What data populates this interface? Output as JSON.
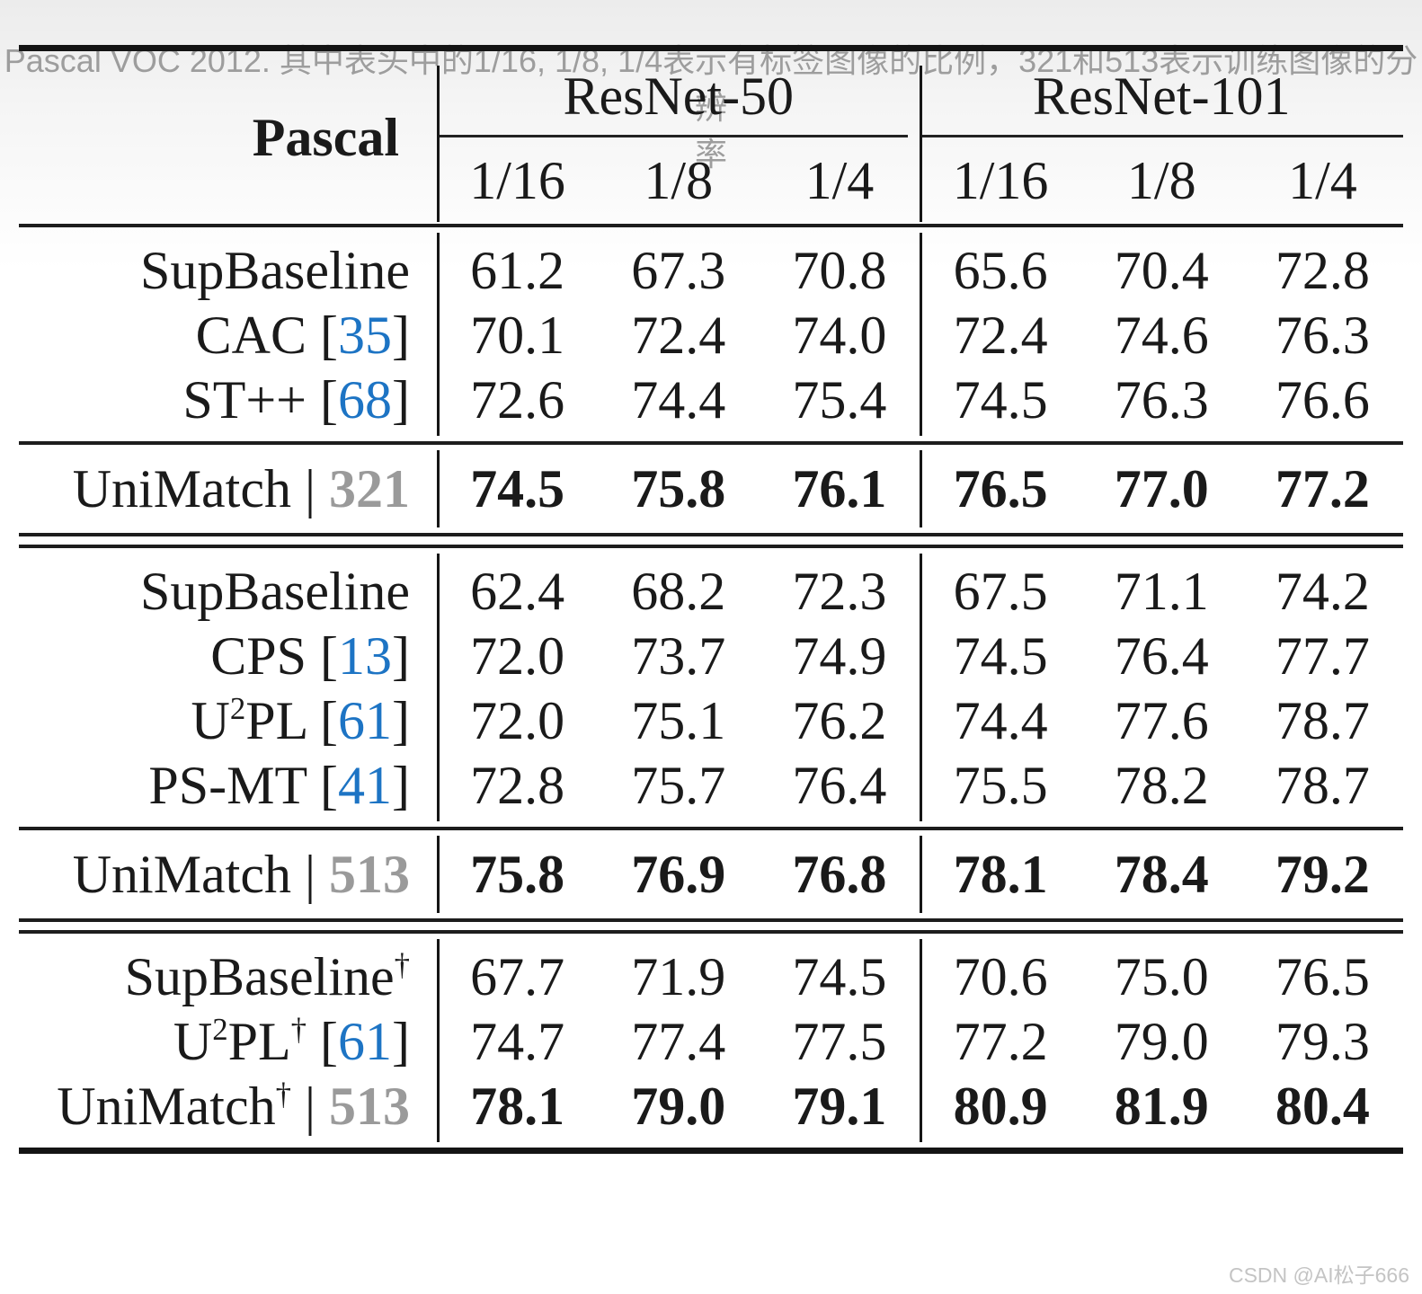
{
  "colors": {
    "accent_blue": "#1d74c4",
    "muted_gray": "#9a9a9a",
    "rule": "#1a1a1a"
  },
  "header": {
    "stub": "Pascal",
    "groups": [
      {
        "label": "ResNet-50"
      },
      {
        "label": "ResNet-101"
      }
    ],
    "subcols": [
      "1/16",
      "1/8",
      "1/4",
      "1/16",
      "1/8",
      "1/4"
    ]
  },
  "sections": [
    {
      "name": "comparisons-321",
      "rule_after": "single",
      "rows": [
        {
          "parts": [
            {
              "text": "SupBaseline"
            }
          ],
          "values": [
            "61.2",
            "67.3",
            "70.8",
            "65.6",
            "70.4",
            "72.8"
          ],
          "bold": false
        },
        {
          "parts": [
            {
              "text": "CAC"
            },
            {
              "text": " ["
            },
            {
              "text": "35",
              "blue": true
            },
            {
              "text": "]"
            }
          ],
          "values": [
            "70.1",
            "72.4",
            "74.0",
            "72.4",
            "74.6",
            "76.3"
          ],
          "bold": false
        },
        {
          "parts": [
            {
              "text": "ST++"
            },
            {
              "text": " ["
            },
            {
              "text": "68",
              "blue": true
            },
            {
              "text": "]"
            }
          ],
          "values": [
            "72.6",
            "74.4",
            "75.4",
            "74.5",
            "76.3",
            "76.6"
          ],
          "bold": false
        }
      ]
    },
    {
      "name": "unimatch-321",
      "rule_after": "double",
      "rows": [
        {
          "parts": [
            {
              "text": "UniMatch"
            },
            {
              "text": " | "
            },
            {
              "text": "321",
              "gray": true
            }
          ],
          "values": [
            "74.5",
            "75.8",
            "76.1",
            "76.5",
            "77.0",
            "77.2"
          ],
          "bold": true
        }
      ]
    },
    {
      "name": "comparisons-513",
      "rule_after": "single",
      "rows": [
        {
          "parts": [
            {
              "text": "SupBaseline"
            }
          ],
          "values": [
            "62.4",
            "68.2",
            "72.3",
            "67.5",
            "71.1",
            "74.2"
          ],
          "bold": false
        },
        {
          "parts": [
            {
              "text": "CPS"
            },
            {
              "text": " ["
            },
            {
              "text": "13",
              "blue": true
            },
            {
              "text": "]"
            }
          ],
          "values": [
            "72.0",
            "73.7",
            "74.9",
            "74.5",
            "76.4",
            "77.7"
          ],
          "bold": false
        },
        {
          "parts": [
            {
              "text": "U"
            },
            {
              "text": "2",
              "sup": true
            },
            {
              "text": "PL"
            },
            {
              "text": " ["
            },
            {
              "text": "61",
              "blue": true
            },
            {
              "text": "]"
            }
          ],
          "values": [
            "72.0",
            "75.1",
            "76.2",
            "74.4",
            "77.6",
            "78.7"
          ],
          "bold": false
        },
        {
          "parts": [
            {
              "text": "PS-MT"
            },
            {
              "text": " ["
            },
            {
              "text": "41",
              "blue": true
            },
            {
              "text": "]"
            }
          ],
          "values": [
            "72.8",
            "75.7",
            "76.4",
            "75.5",
            "78.2",
            "78.7"
          ],
          "bold": false
        }
      ]
    },
    {
      "name": "unimatch-513",
      "rule_after": "double",
      "rows": [
        {
          "parts": [
            {
              "text": "UniMatch"
            },
            {
              "text": " | "
            },
            {
              "text": "513",
              "gray": true
            }
          ],
          "values": [
            "75.8",
            "76.9",
            "76.8",
            "78.1",
            "78.4",
            "79.2"
          ],
          "bold": true
        }
      ]
    },
    {
      "name": "dagger-block",
      "rule_after": "none",
      "rows": [
        {
          "parts": [
            {
              "text": "SupBaseline"
            },
            {
              "text": "†",
              "sup": true
            }
          ],
          "values": [
            "67.7",
            "71.9",
            "74.5",
            "70.6",
            "75.0",
            "76.5"
          ],
          "bold": false
        },
        {
          "parts": [
            {
              "text": "U"
            },
            {
              "text": "2",
              "sup": true
            },
            {
              "text": "PL"
            },
            {
              "text": "†",
              "sup": true
            },
            {
              "text": " ["
            },
            {
              "text": "61",
              "blue": true
            },
            {
              "text": "]"
            }
          ],
          "values": [
            "74.7",
            "77.4",
            "77.5",
            "77.2",
            "79.0",
            "79.3"
          ],
          "bold": false
        },
        {
          "parts": [
            {
              "text": "UniMatch"
            },
            {
              "text": "†",
              "sup": true
            },
            {
              "text": " | "
            },
            {
              "text": "513",
              "gray": true
            }
          ],
          "values": [
            "78.1",
            "79.0",
            "79.1",
            "80.9",
            "81.9",
            "80.4"
          ],
          "bold": true
        }
      ]
    }
  ],
  "caption": {
    "line1": "Pascal VOC 2012. 其中表头中的1/16, 1/8, 1/4表示有标签图像的比例，321和513表示训练图像的分辨",
    "line2": "率"
  },
  "watermark": "CSDN @AI松子666"
}
